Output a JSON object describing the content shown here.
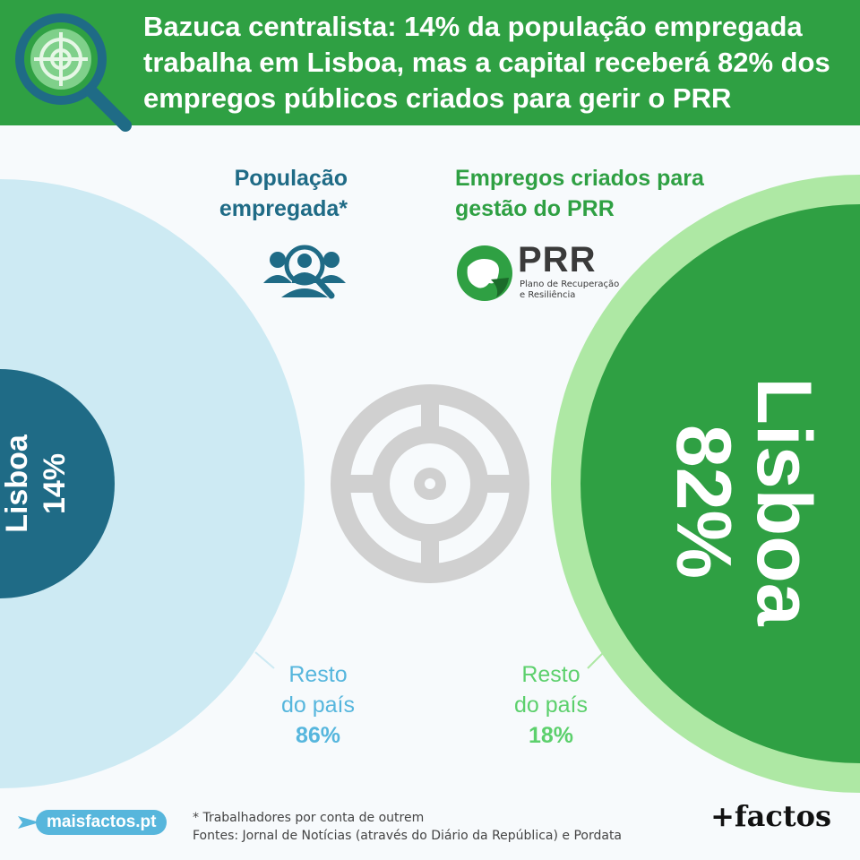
{
  "header": {
    "title": "Bazuca centralista: 14% da população empregada trabalha em Lisboa, mas a capital receberá 82% dos empregos públicos criados para gerir o PRR"
  },
  "panels": {
    "population_label": "População empregada*",
    "prr_label": "Empregos criados para gestão do PRR",
    "prr_logo_text": "PRR",
    "prr_logo_subtitle_1": "Plano de Recuperação",
    "prr_logo_subtitle_2": "e Resiliência",
    "people_icon": "people-search-icon",
    "target_icon": "target-icon"
  },
  "chart_data": [
    {
      "type": "pie",
      "title": "População empregada*",
      "categories": [
        "Lisboa",
        "Resto do país"
      ],
      "values": [
        14,
        86
      ],
      "value_labels": [
        "14%",
        "86%"
      ],
      "colors": [
        "#1f6b86",
        "#cdeaf3"
      ]
    },
    {
      "type": "pie",
      "title": "Empregos criados para gestão do PRR",
      "categories": [
        "Lisboa",
        "Resto do país"
      ],
      "values": [
        82,
        18
      ],
      "value_labels": [
        "82%",
        "18%"
      ],
      "colors": [
        "#2fa043",
        "#aee8a4"
      ]
    }
  ],
  "labels": {
    "left_inner_name": "Lisboa",
    "left_inner_value": "14%",
    "right_inner_name": "Lisboa",
    "right_inner_value": "82%",
    "left_outer_line1": "Resto",
    "left_outer_line2": "do país",
    "left_outer_value": "86%",
    "right_outer_line1": "Resto",
    "right_outer_line2": "do país",
    "right_outer_value": "18%"
  },
  "footer": {
    "note": "* Trabalhadores por conta de outrem",
    "sources": "Fontes: Jornal de Notícias (através do Diário da República) e Pordata",
    "site": "maisfactos.pt",
    "brand": "+factos"
  }
}
